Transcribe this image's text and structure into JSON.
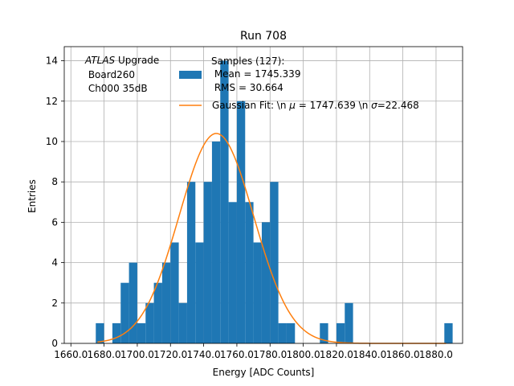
{
  "chart_data": {
    "type": "bar",
    "title": "Run 708",
    "xlabel": "Energy [ADC Counts]",
    "ylabel": "Entries",
    "xlim": [
      1656,
      1896
    ],
    "ylim": [
      0,
      14.7
    ],
    "grid": true,
    "x_ticks": [
      1660,
      1680,
      1700,
      1720,
      1740,
      1760,
      1780,
      1800,
      1820,
      1840,
      1860,
      1880
    ],
    "x_tick_labels": [
      "1660.0",
      "1680.0",
      "1700.0",
      "1720.0",
      "1740.0",
      "1760.0",
      "1780.0",
      "1800.0",
      "1820.0",
      "1840.0",
      "1860.0",
      "1880.0"
    ],
    "y_ticks": [
      0,
      2,
      4,
      6,
      8,
      10,
      12,
      14
    ],
    "y_tick_labels": [
      "0",
      "2",
      "4",
      "6",
      "8",
      "10",
      "12",
      "14"
    ],
    "bin_width": 5,
    "bins": [
      {
        "left": 1675,
        "count": 1
      },
      {
        "left": 1685,
        "count": 1
      },
      {
        "left": 1690,
        "count": 3
      },
      {
        "left": 1695,
        "count": 4
      },
      {
        "left": 1700,
        "count": 1
      },
      {
        "left": 1705,
        "count": 2
      },
      {
        "left": 1710,
        "count": 3
      },
      {
        "left": 1715,
        "count": 4
      },
      {
        "left": 1720,
        "count": 5
      },
      {
        "left": 1725,
        "count": 2
      },
      {
        "left": 1730,
        "count": 8
      },
      {
        "left": 1735,
        "count": 5
      },
      {
        "left": 1740,
        "count": 8
      },
      {
        "left": 1745,
        "count": 10
      },
      {
        "left": 1750,
        "count": 14
      },
      {
        "left": 1755,
        "count": 7
      },
      {
        "left": 1760,
        "count": 12
      },
      {
        "left": 1765,
        "count": 7
      },
      {
        "left": 1770,
        "count": 5
      },
      {
        "left": 1775,
        "count": 6
      },
      {
        "left": 1780,
        "count": 8
      },
      {
        "left": 1785,
        "count": 1
      },
      {
        "left": 1790,
        "count": 1
      },
      {
        "left": 1810,
        "count": 1
      },
      {
        "left": 1820,
        "count": 1
      },
      {
        "left": 1825,
        "count": 2
      },
      {
        "left": 1885,
        "count": 1
      }
    ],
    "series": [
      {
        "name": "Samples (127):\n Mean = 1745.339\n RMS = 30.664",
        "type": "histogram",
        "color": "#1f77b4"
      },
      {
        "name": "Gaussian Fit: \\n μ = 1747.639 \\n σ=22.468",
        "type": "line",
        "color": "#ff7f0e",
        "amplitude": 10.4,
        "mu": 1747.639,
        "sigma": 22.468,
        "x_range": [
          1676,
          1886
        ]
      }
    ],
    "annotation": {
      "lines": [
        "ATLAS Upgrade",
        " Board260",
        " Ch000 35dB"
      ],
      "italic_prefix": "ATLAS",
      "rest_first_line": " Upgrade"
    },
    "legend": {
      "placement": "top-center",
      "hist_label_lines": [
        "Samples (127):",
        " Mean = 1745.339",
        " RMS = 30.664"
      ],
      "fit_label_prefix": "Gaussian Fit: \\n ",
      "fit_mu_symbol": "μ",
      "fit_label_mid": " = 1747.639 \\n ",
      "fit_sigma_symbol": "σ",
      "fit_label_end": "=22.468"
    }
  }
}
